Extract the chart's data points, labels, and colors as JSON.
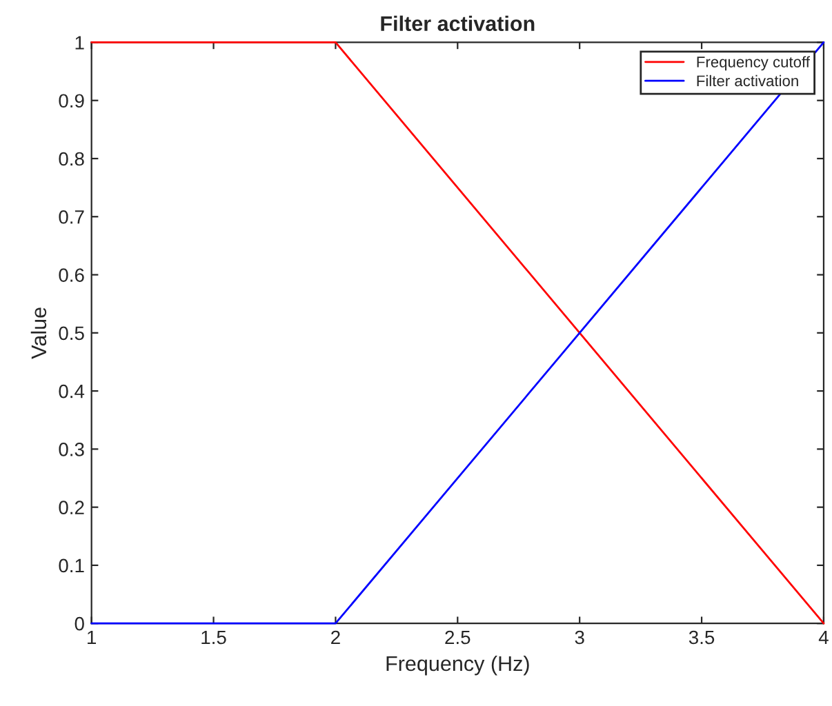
{
  "chart_data": {
    "type": "line",
    "title": "Filter activation",
    "xlabel": "Frequency (Hz)",
    "ylabel": "Value",
    "x": [
      1,
      2,
      4
    ],
    "series": [
      {
        "name": "Frequency cutoff",
        "color": "#ff0000",
        "values": [
          1,
          1,
          0
        ]
      },
      {
        "name": "Filter activation",
        "color": "#0000ff",
        "values": [
          0,
          0,
          1
        ]
      }
    ],
    "xlim": [
      1,
      4
    ],
    "xticks": [
      1,
      1.5,
      2,
      2.5,
      3,
      3.5,
      4
    ],
    "ylim": [
      0,
      1
    ],
    "yticks": [
      0,
      0.1,
      0.2,
      0.3,
      0.4,
      0.5,
      0.6,
      0.7,
      0.8,
      0.9,
      1
    ],
    "grid": false,
    "legend": "top right",
    "marker": "none",
    "line_style": "solid"
  }
}
